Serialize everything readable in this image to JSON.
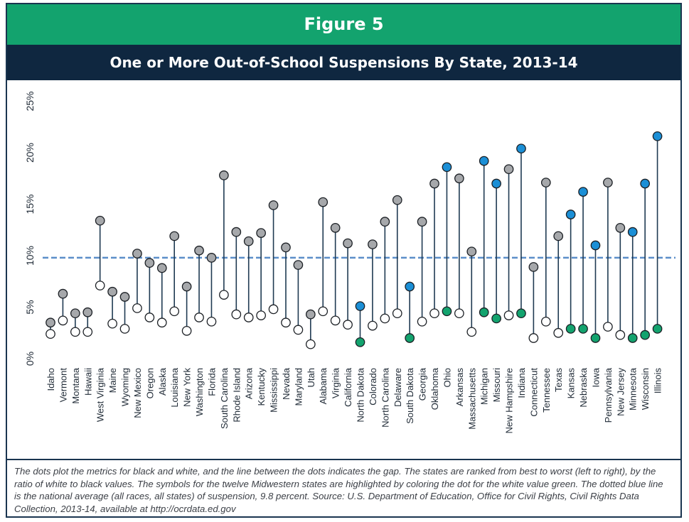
{
  "figure_label": "Figure 5",
  "caption": "The dots plot the metrics for black and white, and the line between the dots indicates the gap. The states are ranked from best to worst (left to right), by the ratio of white to black values. The symbols for the twelve Midwestern states are highlighted by coloring the dot for the white value green. The dotted blue line is the national average (all races, all states) of suspension, 9.8 percent. Source: U.S. Department of Education, Office for Civil Rights, Civil Rights Data Collection, 2013-14, available at http://ocrdata.ed.gov",
  "colors": {
    "figure_bar": "#13a36e",
    "title_bar": "#0f2740",
    "black_dot": "#a6a8ab",
    "white_dot": "#ffffff",
    "midwest_black_dot": "#1b8fd6",
    "midwest_white_dot": "#13a36e",
    "line": "#1f3a52",
    "average_line": "#5b8ec9"
  },
  "chart_data": {
    "type": "scatter",
    "title": "One or More Out-of-School Suspensions By State, 2013-14",
    "xlabel": "",
    "ylabel": "",
    "ylim": [
      0,
      25
    ],
    "yticks": [
      "0%",
      "5%",
      "10%",
      "15%",
      "20%",
      "25%"
    ],
    "grid": false,
    "reference_line": 9.8,
    "categories": [
      "Idaho",
      "Vermont",
      "Montana",
      "Hawaii",
      "West Virginia",
      "Maine",
      "Wyoming",
      "New Mexico",
      "Oregon",
      "Alaska",
      "Louisiana",
      "New York",
      "Washington",
      "Florida",
      "South Carolina",
      "Rhode Island",
      "Arizona",
      "Kentucky",
      "Mississippi",
      "Nevada",
      "Maryland",
      "Utah",
      "Alabama",
      "Virginia",
      "California",
      "North Dakota",
      "Colorado",
      "North Carolina",
      "Delaware",
      "South Dakota",
      "Georgia",
      "Oklahoma",
      "Ohio",
      "Arkansas",
      "Massachusetts",
      "Michigan",
      "Missouri",
      "New Hampshire",
      "Indiana",
      "Connecticut",
      "Tennessee",
      "Texas",
      "Kansas",
      "Nebraska",
      "Iowa",
      "Pennsylvania",
      "New Jersey",
      "Minnesota",
      "Wisconsin",
      "Illinois"
    ],
    "midwest": [
      false,
      false,
      false,
      false,
      false,
      false,
      false,
      false,
      false,
      false,
      false,
      false,
      false,
      false,
      false,
      false,
      false,
      false,
      false,
      false,
      false,
      false,
      false,
      false,
      false,
      true,
      false,
      false,
      false,
      true,
      false,
      false,
      true,
      false,
      false,
      true,
      true,
      false,
      true,
      false,
      false,
      false,
      true,
      true,
      true,
      false,
      false,
      true,
      true,
      true
    ],
    "series": [
      {
        "values": [
          3.5,
          6.3,
          4.4,
          4.5,
          13.4,
          6.5,
          6.0,
          10.2,
          9.3,
          8.8,
          11.9,
          7.0,
          10.5,
          9.8,
          17.8,
          12.3,
          11.4,
          12.2,
          14.9,
          10.8,
          9.1,
          4.3,
          15.2,
          12.7,
          11.2,
          5.1,
          11.1,
          13.3,
          15.4,
          7.0,
          13.3,
          17.0,
          18.6,
          17.5,
          10.4,
          19.2,
          17.0,
          18.4,
          20.4,
          8.9,
          17.1,
          11.9,
          14.0,
          16.2,
          11.0,
          17.1,
          12.7,
          12.3,
          17.0,
          21.6
        ]
      },
      {
        "values": [
          2.4,
          3.7,
          2.6,
          2.6,
          7.1,
          3.4,
          2.9,
          4.9,
          4.0,
          3.5,
          4.6,
          2.7,
          4.0,
          3.6,
          6.2,
          4.3,
          4.0,
          4.2,
          4.8,
          3.5,
          2.8,
          1.4,
          4.6,
          3.7,
          3.3,
          1.6,
          3.2,
          3.9,
          4.4,
          2.0,
          3.6,
          4.4,
          4.6,
          4.4,
          2.6,
          4.5,
          3.9,
          4.2,
          4.4,
          2.0,
          3.6,
          2.5,
          2.9,
          2.9,
          2.0,
          3.1,
          2.3,
          2.0,
          2.3,
          2.9
        ]
      }
    ]
  }
}
